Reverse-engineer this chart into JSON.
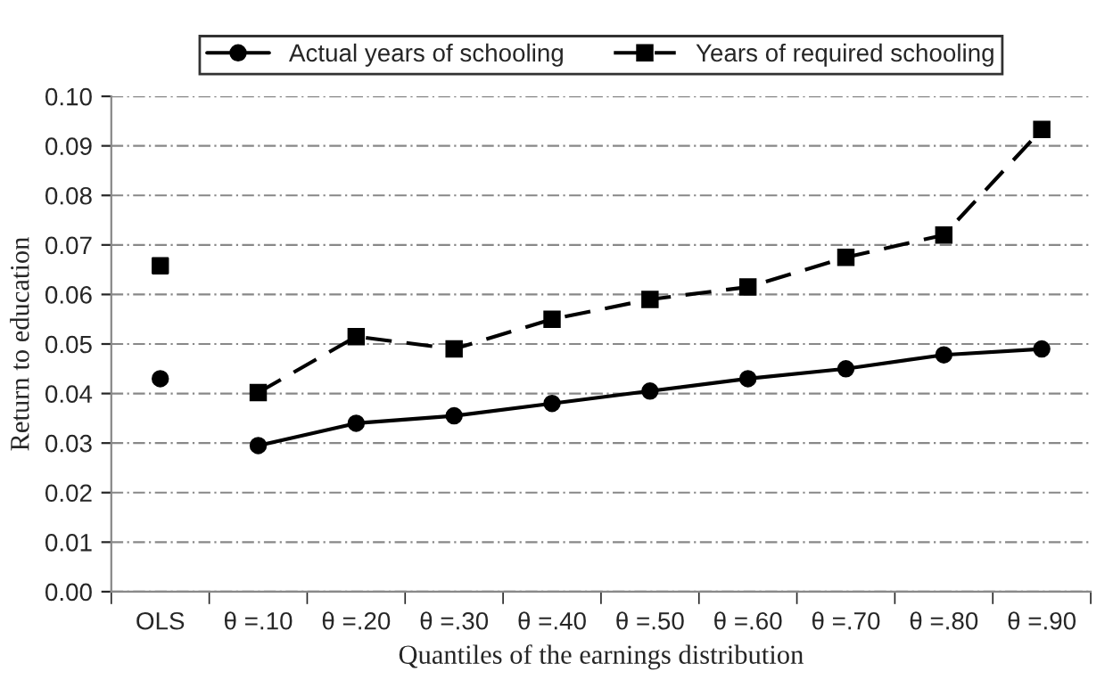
{
  "chart_data": {
    "type": "line",
    "xlabel": "Quantiles of the earnings distribution",
    "ylabel": "Return to education",
    "categories": [
      "OLS",
      "θ =.10",
      "θ =.20",
      "θ =.30",
      "θ =.40",
      "θ =.50",
      "θ =.60",
      "θ =.70",
      "θ =.80",
      "θ =.90"
    ],
    "series": [
      {
        "name": "Actual years of schooling",
        "color": "#000000",
        "marker": "circle",
        "line_style": "solid",
        "values": [
          null,
          0.0295,
          0.034,
          0.0355,
          0.038,
          0.0405,
          0.043,
          0.045,
          0.0478,
          0.049
        ]
      },
      {
        "name": "Years of required schooling",
        "color": "#000000",
        "marker": "square",
        "line_style": "dashed",
        "values": [
          null,
          0.0402,
          0.0515,
          0.049,
          0.055,
          0.059,
          0.0615,
          0.0675,
          0.072,
          0.0933
        ]
      },
      {
        "type": "scatter",
        "color": "#000000",
        "marker": "circle",
        "values": [
          0.043,
          null,
          null,
          null,
          null,
          null,
          null,
          null,
          null,
          null
        ]
      },
      {
        "type": "scatter",
        "color": "#000000",
        "marker": "square",
        "values": [
          0.0658,
          null,
          null,
          null,
          null,
          null,
          null,
          null,
          null,
          null
        ]
      }
    ],
    "ylim": [
      0,
      0.1
    ],
    "yticks": [
      {
        "value": 0,
        "label": "0.00"
      },
      {
        "value": 0.01,
        "label": "0.01"
      },
      {
        "value": 0.02,
        "label": "0.02"
      },
      {
        "value": 0.03,
        "label": "0.03"
      },
      {
        "value": 0.04,
        "label": "0.04"
      },
      {
        "value": 0.05,
        "label": "0.05"
      },
      {
        "value": 0.06,
        "label": "0.06"
      },
      {
        "value": 0.07,
        "label": "0.07"
      },
      {
        "value": 0.08,
        "label": "0.08"
      },
      {
        "value": 0.09,
        "label": "0.09"
      },
      {
        "value": 0.1,
        "label": "0.10"
      }
    ],
    "grid": "y",
    "legend": "top"
  }
}
